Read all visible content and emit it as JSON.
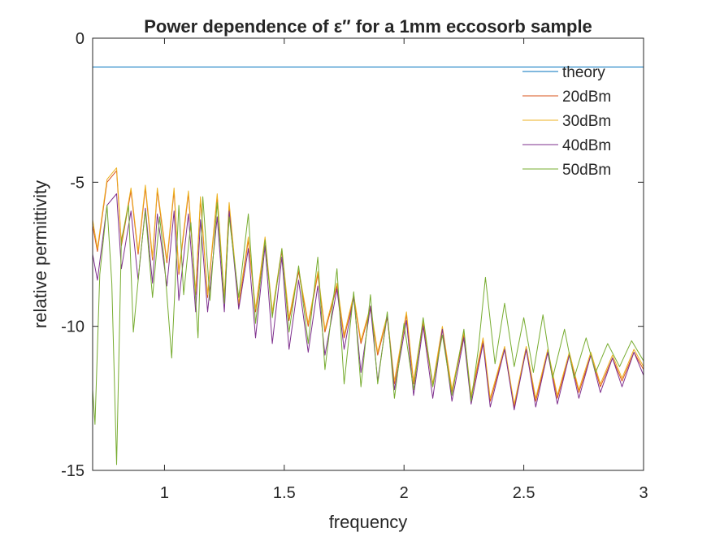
{
  "chart_data": {
    "type": "line",
    "title": "Power dependence of ε″ for a 1mm eccosorb sample",
    "xlabel": "frequency",
    "ylabel": "relative permittivity",
    "xlim": [
      0.7,
      3.0
    ],
    "ylim": [
      -15,
      0
    ],
    "x_ticks": [
      1,
      1.5,
      2,
      2.5,
      3
    ],
    "x_tick_labels": [
      "1",
      "1.5",
      "2",
      "2.5",
      "3"
    ],
    "y_ticks": [
      0,
      -5,
      -10,
      -15
    ],
    "y_tick_labels": [
      "0",
      "-5",
      "-10",
      "-15"
    ],
    "grid": false,
    "legend_position": "top-right",
    "series": [
      {
        "name": "theory",
        "color": "#0072BD",
        "x": [
          0.7,
          3.0
        ],
        "y": [
          -1.0,
          -1.0
        ]
      },
      {
        "name": "20dBm",
        "color": "#D95319",
        "x": [
          0.7,
          0.72,
          0.76,
          0.8,
          0.82,
          0.86,
          0.89,
          0.92,
          0.95,
          0.97,
          1.01,
          1.04,
          1.06,
          1.1,
          1.13,
          1.15,
          1.18,
          1.22,
          1.25,
          1.27,
          1.31,
          1.35,
          1.38,
          1.42,
          1.45,
          1.49,
          1.52,
          1.56,
          1.6,
          1.64,
          1.67,
          1.72,
          1.75,
          1.79,
          1.82,
          1.86,
          1.89,
          1.93,
          1.96,
          2.01,
          2.04,
          2.08,
          2.12,
          2.16,
          2.2,
          2.25,
          2.28,
          2.33,
          2.36,
          2.42,
          2.46,
          2.51,
          2.55,
          2.6,
          2.64,
          2.69,
          2.73,
          2.78,
          2.82,
          2.87,
          2.91,
          2.96,
          3.0
        ],
        "y": [
          -6.5,
          -7.4,
          -5.0,
          -4.6,
          -7.2,
          -5.3,
          -7.5,
          -5.2,
          -7.7,
          -5.3,
          -7.8,
          -5.3,
          -8.2,
          -5.4,
          -8.9,
          -5.6,
          -9.0,
          -5.5,
          -9.1,
          -5.8,
          -9.3,
          -7.0,
          -9.5,
          -7.0,
          -9.6,
          -7.4,
          -9.8,
          -8.1,
          -10.0,
          -8.2,
          -10.2,
          -8.6,
          -10.4,
          -9.0,
          -10.6,
          -9.4,
          -11.0,
          -9.7,
          -12.0,
          -9.6,
          -12.0,
          -9.9,
          -12.1,
          -10.1,
          -12.3,
          -10.3,
          -12.5,
          -10.5,
          -12.6,
          -10.8,
          -12.8,
          -10.8,
          -12.6,
          -10.9,
          -12.5,
          -11.0,
          -12.3,
          -11.0,
          -12.1,
          -11.1,
          -11.9,
          -10.9,
          -11.5
        ]
      },
      {
        "name": "30dBm",
        "color": "#EDB120",
        "x": [
          0.7,
          0.72,
          0.76,
          0.8,
          0.82,
          0.86,
          0.89,
          0.92,
          0.95,
          0.97,
          1.01,
          1.04,
          1.06,
          1.1,
          1.13,
          1.15,
          1.18,
          1.22,
          1.25,
          1.27,
          1.31,
          1.35,
          1.38,
          1.42,
          1.45,
          1.49,
          1.52,
          1.56,
          1.6,
          1.64,
          1.67,
          1.72,
          1.75,
          1.79,
          1.82,
          1.86,
          1.89,
          1.93,
          1.96,
          2.01,
          2.04,
          2.08,
          2.12,
          2.16,
          2.2,
          2.25,
          2.28,
          2.33,
          2.36,
          2.42,
          2.46,
          2.51,
          2.55,
          2.6,
          2.64,
          2.69,
          2.73,
          2.78,
          2.82,
          2.87,
          2.91,
          2.96,
          3.0
        ],
        "y": [
          -6.3,
          -7.3,
          -4.9,
          -4.5,
          -7.1,
          -5.2,
          -7.4,
          -5.1,
          -7.6,
          -5.2,
          -7.7,
          -5.2,
          -8.1,
          -5.3,
          -8.8,
          -5.5,
          -8.9,
          -5.4,
          -9.0,
          -5.7,
          -9.2,
          -6.9,
          -9.4,
          -6.9,
          -9.5,
          -7.3,
          -9.7,
          -8.0,
          -9.9,
          -8.1,
          -10.1,
          -8.5,
          -10.3,
          -8.9,
          -10.5,
          -9.3,
          -10.9,
          -9.6,
          -11.9,
          -9.5,
          -11.9,
          -9.8,
          -12.0,
          -10.0,
          -12.2,
          -10.2,
          -12.4,
          -10.4,
          -12.5,
          -10.7,
          -12.7,
          -10.7,
          -12.5,
          -10.8,
          -12.4,
          -10.9,
          -12.2,
          -10.9,
          -12.0,
          -11.0,
          -11.8,
          -10.8,
          -11.4
        ]
      },
      {
        "name": "40dBm",
        "color": "#7E2F8E",
        "x": [
          0.7,
          0.72,
          0.76,
          0.8,
          0.82,
          0.86,
          0.89,
          0.92,
          0.95,
          0.97,
          1.01,
          1.04,
          1.06,
          1.1,
          1.13,
          1.15,
          1.18,
          1.22,
          1.25,
          1.27,
          1.31,
          1.35,
          1.38,
          1.42,
          1.45,
          1.49,
          1.52,
          1.56,
          1.6,
          1.64,
          1.67,
          1.72,
          1.75,
          1.79,
          1.82,
          1.86,
          1.89,
          1.93,
          1.96,
          2.01,
          2.04,
          2.08,
          2.12,
          2.16,
          2.2,
          2.25,
          2.28,
          2.33,
          2.36,
          2.42,
          2.46,
          2.51,
          2.55,
          2.6,
          2.64,
          2.69,
          2.73,
          2.78,
          2.82,
          2.87,
          2.91,
          2.96,
          3.0
        ],
        "y": [
          -7.5,
          -8.4,
          -5.8,
          -5.4,
          -8.0,
          -6.0,
          -8.4,
          -5.9,
          -8.5,
          -6.1,
          -8.6,
          -6.0,
          -9.1,
          -6.1,
          -9.5,
          -6.3,
          -9.5,
          -6.2,
          -9.5,
          -6.0,
          -9.4,
          -7.3,
          -10.4,
          -7.2,
          -10.6,
          -7.6,
          -10.8,
          -8.4,
          -10.9,
          -8.6,
          -11.0,
          -8.7,
          -10.8,
          -9.0,
          -11.6,
          -9.3,
          -11.9,
          -9.6,
          -12.2,
          -9.8,
          -12.4,
          -10.0,
          -12.5,
          -10.1,
          -12.6,
          -10.4,
          -12.7,
          -10.6,
          -12.8,
          -10.8,
          -12.9,
          -10.8,
          -12.8,
          -10.9,
          -12.7,
          -11.0,
          -12.5,
          -11.0,
          -12.3,
          -11.1,
          -12.1,
          -10.9,
          -11.7
        ]
      },
      {
        "name": "50dBm",
        "color": "#77AC30",
        "x": [
          0.7,
          0.71,
          0.73,
          0.76,
          0.78,
          0.8,
          0.82,
          0.85,
          0.87,
          0.9,
          0.92,
          0.95,
          0.98,
          1.0,
          1.03,
          1.06,
          1.08,
          1.11,
          1.14,
          1.16,
          1.19,
          1.22,
          1.25,
          1.27,
          1.31,
          1.35,
          1.38,
          1.42,
          1.45,
          1.49,
          1.52,
          1.56,
          1.6,
          1.64,
          1.67,
          1.72,
          1.75,
          1.79,
          1.82,
          1.86,
          1.89,
          1.93,
          1.96,
          2.0,
          2.04,
          2.08,
          2.12,
          2.16,
          2.2,
          2.25,
          2.28,
          2.31,
          2.34,
          2.38,
          2.42,
          2.46,
          2.5,
          2.54,
          2.58,
          2.62,
          2.67,
          2.71,
          2.76,
          2.8,
          2.85,
          2.9,
          2.95,
          3.0
        ],
        "y": [
          -12.2,
          -13.4,
          -8.2,
          -5.8,
          -8.5,
          -14.8,
          -7.0,
          -5.8,
          -10.2,
          -7.5,
          -6.0,
          -9.0,
          -6.2,
          -7.8,
          -11.1,
          -5.8,
          -8.9,
          -6.4,
          -10.4,
          -5.5,
          -9.1,
          -5.7,
          -9.2,
          -6.2,
          -9.0,
          -6.1,
          -9.9,
          -7.0,
          -9.7,
          -7.3,
          -10.2,
          -7.9,
          -10.6,
          -7.6,
          -11.5,
          -8.0,
          -12.0,
          -8.8,
          -12.1,
          -8.9,
          -12.0,
          -9.5,
          -12.5,
          -9.9,
          -12.2,
          -9.7,
          -12.1,
          -10.3,
          -12.4,
          -10.1,
          -12.6,
          -10.8,
          -8.3,
          -11.3,
          -9.2,
          -11.4,
          -9.7,
          -11.6,
          -9.6,
          -11.8,
          -10.1,
          -11.8,
          -10.4,
          -11.6,
          -10.6,
          -11.4,
          -10.5,
          -11.2
        ]
      }
    ]
  }
}
